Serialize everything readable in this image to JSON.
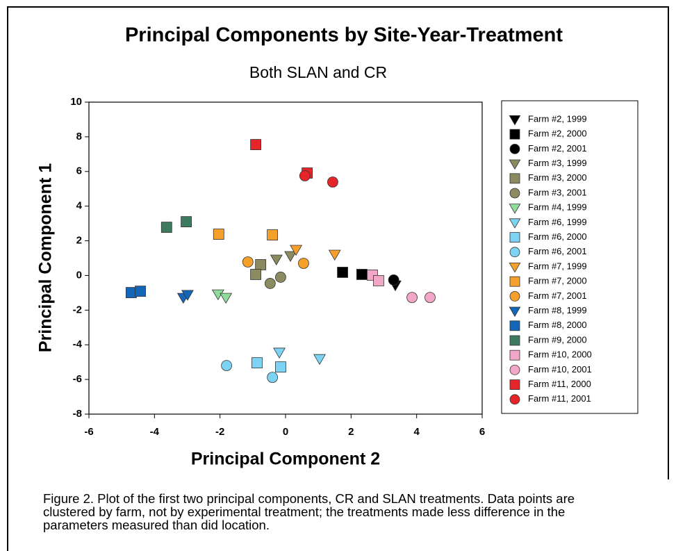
{
  "chart_data": {
    "type": "scatter",
    "title": "Principal Components by Site-Year-Treatment",
    "subtitle": "Both SLAN and CR",
    "x_label": "Principal Component 2",
    "y_label": "Principal Component 1",
    "caption": "Figure 2. Plot of the first two principal components, CR and SLAN treatments. Data points are clustered by farm, not by experimental treatment; the treatments made less difference in the parameters measured than did location.",
    "xlim": [
      -6,
      6
    ],
    "ylim": [
      -8,
      10
    ],
    "xticks": [
      -6,
      -4,
      -2,
      0,
      2,
      4,
      6
    ],
    "yticks": [
      -8,
      -6,
      -4,
      -2,
      0,
      2,
      4,
      6,
      8,
      10
    ],
    "grid": false,
    "legend": "right",
    "series": [
      {
        "name": "Farm #2, 1999",
        "color": "#000000",
        "marker": "down",
        "x": [
          3.35
        ],
        "values": [
          -0.55
        ]
      },
      {
        "name": "Farm #2, 2000",
        "color": "#000000",
        "marker": "square",
        "x": [
          1.74,
          2.33
        ],
        "values": [
          0.18,
          0.06
        ]
      },
      {
        "name": "Farm #2, 2001",
        "color": "#000000",
        "marker": "circle",
        "x": [
          3.3
        ],
        "values": [
          -0.26
        ]
      },
      {
        "name": "Farm #3, 1999",
        "color": "#8b8a60",
        "marker": "down",
        "x": [
          -0.28,
          0.15
        ],
        "values": [
          0.94,
          1.14
        ]
      },
      {
        "name": "Farm #3, 2000",
        "color": "#8b8a60",
        "marker": "square",
        "x": [
          -0.76,
          -0.91
        ],
        "values": [
          0.62,
          0.06
        ]
      },
      {
        "name": "Farm #3, 2001",
        "color": "#8b8a60",
        "marker": "circle",
        "x": [
          -0.47,
          -0.15
        ],
        "values": [
          -0.46,
          -0.1
        ]
      },
      {
        "name": "Farm #4, 1999",
        "color": "#8fdc9c",
        "marker": "down",
        "x": [
          -2.06,
          -1.82
        ],
        "values": [
          -1.07,
          -1.27
        ]
      },
      {
        "name": "Farm #6, 1999",
        "color": "#7dd3f3",
        "marker": "down",
        "x": [
          -0.19,
          1.04
        ],
        "values": [
          -4.43,
          -4.8
        ]
      },
      {
        "name": "Farm #6, 2000",
        "color": "#7dd3f3",
        "marker": "square",
        "x": [
          -0.87,
          -0.15
        ],
        "values": [
          -5.04,
          -5.28
        ]
      },
      {
        "name": "Farm #6, 2001",
        "color": "#7dd3f3",
        "marker": "circle",
        "x": [
          -1.8,
          -0.4
        ],
        "values": [
          -5.2,
          -5.88
        ]
      },
      {
        "name": "Farm #7, 1999",
        "color": "#f5a02a",
        "marker": "down",
        "x": [
          0.32,
          1.5
        ],
        "values": [
          1.5,
          1.22
        ]
      },
      {
        "name": "Farm #7, 2000",
        "color": "#f5a02a",
        "marker": "square",
        "x": [
          -2.04,
          -0.4
        ],
        "values": [
          2.38,
          2.34
        ]
      },
      {
        "name": "Farm #7, 2001",
        "color": "#f5a02a",
        "marker": "circle",
        "x": [
          -1.15,
          0.55
        ],
        "values": [
          0.78,
          0.7
        ]
      },
      {
        "name": "Farm #8, 1999",
        "color": "#1466b8",
        "marker": "down",
        "x": [
          -3.12,
          -2.99
        ],
        "values": [
          -1.27,
          -1.1
        ]
      },
      {
        "name": "Farm #8, 2000",
        "color": "#1466b8",
        "marker": "square",
        "x": [
          -4.71,
          -4.43
        ],
        "values": [
          -0.99,
          -0.91
        ]
      },
      {
        "name": "Farm #9, 2000",
        "color": "#3e7a5f",
        "marker": "square",
        "x": [
          -3.63,
          -3.03
        ],
        "values": [
          2.78,
          3.1
        ]
      },
      {
        "name": "Farm #10, 2000",
        "color": "#f2a6c8",
        "marker": "square",
        "x": [
          2.65,
          2.84
        ],
        "values": [
          0.02,
          -0.3
        ]
      },
      {
        "name": "Farm #10, 2001",
        "color": "#f2a6c8",
        "marker": "circle",
        "x": [
          3.86,
          4.41
        ],
        "values": [
          -1.27,
          -1.27
        ]
      },
      {
        "name": "Farm #11, 2000",
        "color": "#e5252a",
        "marker": "square",
        "x": [
          -0.91,
          0.66
        ],
        "values": [
          7.55,
          5.91
        ]
      },
      {
        "name": "Farm #11, 2001",
        "color": "#e5252a",
        "marker": "circle",
        "x": [
          0.59,
          1.44
        ],
        "values": [
          5.75,
          5.39
        ]
      }
    ]
  }
}
